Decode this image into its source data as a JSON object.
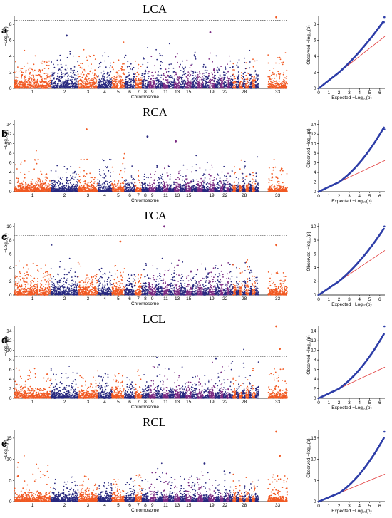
{
  "colors": {
    "orange": "#f15a24",
    "navy": "#28287f",
    "purple": "#7a2a82",
    "qq_points": "#2e3ea8",
    "qq_line": "#e23a3a",
    "threshold": "#555555"
  },
  "axis_text": {
    "x_label": "Chromosome",
    "y_label": "−Log₁₀(p)",
    "qq_x_label": "Expected −Log₁₀(p)",
    "qq_y_label": "Observed −log₁₀(p)"
  },
  "panels": [
    {
      "letter": "a",
      "title": "LCA",
      "ymax": 9,
      "yticks": [
        0,
        2,
        4,
        6,
        8
      ],
      "qq_yticks": [
        0,
        2,
        4,
        6,
        8
      ],
      "threshold": 8.5,
      "top_hits": [
        {
          "chr": "33",
          "y": 8.9
        },
        {
          "chr": "2",
          "y": 6.6
        },
        {
          "chr": "19",
          "y": 7.0
        }
      ]
    },
    {
      "letter": "b",
      "title": "RCA",
      "ymax": 15,
      "yticks": [
        0,
        2,
        4,
        6,
        8,
        10,
        12,
        14
      ],
      "qq_yticks": [
        0,
        2,
        4,
        6,
        8,
        10,
        12,
        14
      ],
      "threshold": 8.7,
      "top_hits": [
        {
          "chr": "3",
          "y": 13.0
        },
        {
          "chr": "8",
          "y": 11.5
        },
        {
          "chr": "13",
          "y": 10.5
        }
      ]
    },
    {
      "letter": "c",
      "title": "TCA",
      "ymax": 10.5,
      "yticks": [
        0,
        2,
        4,
        6,
        8,
        10
      ],
      "qq_yticks": [
        0,
        2,
        4,
        6,
        8,
        10
      ],
      "threshold": 8.7,
      "top_hits": [
        {
          "chr": "11",
          "y": 10.0
        },
        {
          "chr": "5",
          "y": 7.8
        },
        {
          "chr": "33",
          "y": 7.3
        }
      ]
    },
    {
      "letter": "d",
      "title": "LCL",
      "ymax": 15,
      "yticks": [
        0,
        2,
        4,
        6,
        8,
        10,
        12,
        14
      ],
      "qq_yticks": [
        0,
        2,
        4,
        6,
        8,
        10,
        12,
        14
      ],
      "threshold": 8.7,
      "top_hits": [
        {
          "chr": "33",
          "y": 15.0
        },
        {
          "chr": "33",
          "y": 10.3
        },
        {
          "chr": "20",
          "y": 8.3
        }
      ]
    },
    {
      "letter": "e",
      "title": "RCL",
      "ymax": 17,
      "yticks": [
        0,
        5,
        10,
        15
      ],
      "qq_yticks": [
        0,
        5,
        10,
        15
      ],
      "threshold": 8.7,
      "top_hits": [
        {
          "chr": "33",
          "y": 16.5
        },
        {
          "chr": "33",
          "y": 10.8
        },
        {
          "chr": "18",
          "y": 9.0
        }
      ]
    }
  ],
  "chart_data": {
    "type": "scatter",
    "description_type": "manhattan + qq",
    "chromosomes": [
      "1",
      "2",
      "3",
      "4",
      "5",
      "6",
      "7",
      "8",
      "9",
      "10",
      "11",
      "12",
      "13",
      "14",
      "15",
      "16",
      "17",
      "18",
      "19",
      "20",
      "21",
      "22",
      "23",
      "24",
      "25",
      "26",
      "27",
      "28",
      "29",
      "30",
      "31",
      "32",
      "33"
    ],
    "x_tick_labels": [
      "1",
      "2",
      "3",
      "4",
      "5",
      "6",
      "7",
      "8",
      "9",
      "11",
      "13",
      "15",
      "19",
      "22",
      "28",
      "33"
    ],
    "qq_xticks": [
      0,
      1,
      2,
      3,
      4,
      5,
      6
    ],
    "qq_xlim": [
      0,
      6.5
    ]
  }
}
